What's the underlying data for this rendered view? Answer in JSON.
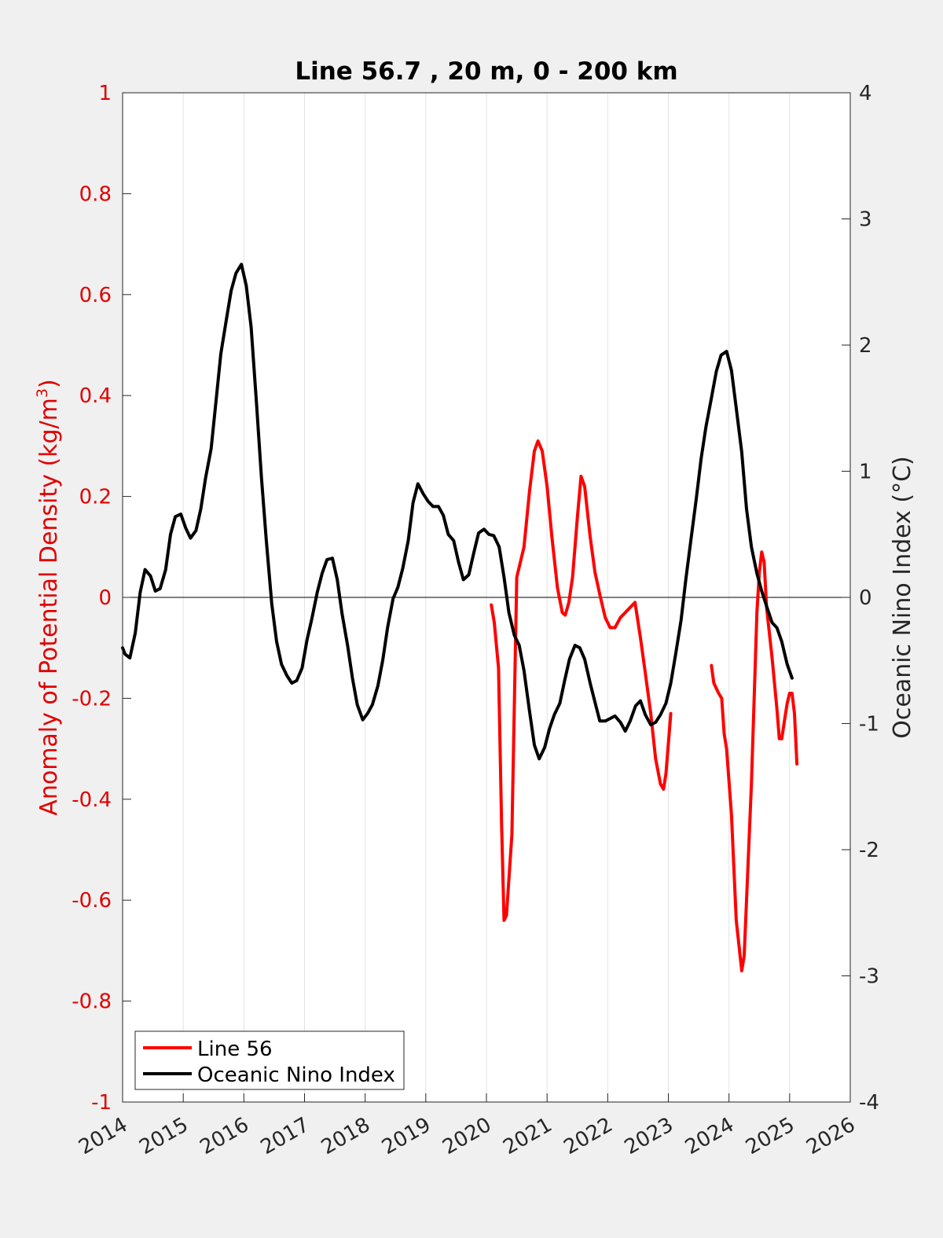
{
  "chart_data": {
    "type": "line",
    "title": "Line 56.7 , 20 m, 0 - 200 km",
    "xlabel": "",
    "ylabel_left": "Anomaly of Potential Density (kg/m",
    "ylabel_left_superscript": "3",
    "ylabel_left_close": ")",
    "ylabel_right": "Oceanic Nino Index (°C)",
    "xlim": [
      2014,
      2026
    ],
    "ylim_left": [
      -1,
      1
    ],
    "ylim_right": [
      -4,
      4
    ],
    "x_ticks": [
      2014,
      2015,
      2016,
      2017,
      2018,
      2019,
      2020,
      2021,
      2022,
      2023,
      2024,
      2025,
      2026
    ],
    "x_tick_labels": [
      "2014",
      "2015",
      "2016",
      "2017",
      "2018",
      "2019",
      "2020",
      "2021",
      "2022",
      "2023",
      "2024",
      "2025",
      "2026"
    ],
    "y_left_ticks": [
      1,
      0.8,
      0.6,
      0.4,
      0.2,
      0,
      -0.2,
      -0.4,
      -0.6,
      -0.8,
      -1
    ],
    "y_left_tick_labels": [
      "1",
      "0.8",
      "0.6",
      "0.4",
      "0.2",
      "0",
      "-0.2",
      "-0.4",
      "-0.6",
      "-0.8",
      "-1"
    ],
    "y_right_ticks": [
      4,
      3,
      2,
      1,
      0,
      -1,
      -2,
      -3,
      -4
    ],
    "y_right_tick_labels": [
      "4",
      "3",
      "2",
      "1",
      "0",
      "-1",
      "-2",
      "-3",
      "-4"
    ],
    "grid": "vertical",
    "zero_line": true,
    "legend_position": "bottom-left",
    "colors": {
      "line56": "#ff0000",
      "oni": "#000000",
      "left_axis": "#e00000"
    },
    "series": [
      {
        "name": "Line 56",
        "axis": "left",
        "segments": [
          [
            [
              2020.08,
              -0.015
            ],
            [
              2020.13,
              -0.05
            ],
            [
              2020.2,
              -0.14
            ],
            [
              2020.25,
              -0.45
            ],
            [
              2020.29,
              -0.64
            ],
            [
              2020.33,
              -0.63
            ],
            [
              2020.42,
              -0.47
            ],
            [
              2020.5,
              0.04
            ],
            [
              2020.54,
              0.06
            ],
            [
              2020.62,
              0.1
            ],
            [
              2020.71,
              0.21
            ],
            [
              2020.79,
              0.29
            ],
            [
              2020.85,
              0.31
            ],
            [
              2020.92,
              0.29
            ],
            [
              2021.0,
              0.22
            ],
            [
              2021.08,
              0.12
            ],
            [
              2021.17,
              0.02
            ],
            [
              2021.25,
              -0.03
            ],
            [
              2021.3,
              -0.035
            ],
            [
              2021.36,
              -0.01
            ],
            [
              2021.42,
              0.04
            ],
            [
              2021.5,
              0.16
            ],
            [
              2021.56,
              0.24
            ],
            [
              2021.62,
              0.22
            ],
            [
              2021.71,
              0.12
            ],
            [
              2021.79,
              0.05
            ],
            [
              2021.88,
              0.0
            ],
            [
              2021.96,
              -0.04
            ],
            [
              2022.04,
              -0.06
            ],
            [
              2022.12,
              -0.06
            ],
            [
              2022.21,
              -0.04
            ],
            [
              2022.29,
              -0.03
            ],
            [
              2022.37,
              -0.02
            ],
            [
              2022.45,
              -0.01
            ],
            [
              2022.54,
              -0.08
            ],
            [
              2022.62,
              -0.15
            ],
            [
              2022.71,
              -0.23
            ],
            [
              2022.79,
              -0.32
            ],
            [
              2022.87,
              -0.37
            ],
            [
              2022.92,
              -0.38
            ],
            [
              2022.96,
              -0.35
            ],
            [
              2023.04,
              -0.23
            ]
          ],
          [
            [
              2023.71,
              -0.135
            ],
            [
              2023.75,
              -0.17
            ],
            [
              2023.79,
              -0.18
            ],
            [
              2023.83,
              -0.19
            ],
            [
              2023.88,
              -0.2
            ],
            [
              2023.92,
              -0.27
            ],
            [
              2023.96,
              -0.3
            ],
            [
              2024.04,
              -0.43
            ],
            [
              2024.12,
              -0.64
            ],
            [
              2024.21,
              -0.74
            ],
            [
              2024.25,
              -0.71
            ],
            [
              2024.29,
              -0.6
            ],
            [
              2024.37,
              -0.37
            ],
            [
              2024.42,
              -0.18
            ],
            [
              2024.46,
              -0.03
            ],
            [
              2024.5,
              0.05
            ],
            [
              2024.54,
              0.09
            ],
            [
              2024.58,
              0.07
            ],
            [
              2024.62,
              -0.02
            ],
            [
              2024.71,
              -0.12
            ],
            [
              2024.79,
              -0.22
            ],
            [
              2024.83,
              -0.28
            ],
            [
              2024.87,
              -0.28
            ],
            [
              2024.92,
              -0.24
            ],
            [
              2024.96,
              -0.21
            ],
            [
              2025.0,
              -0.19
            ],
            [
              2025.04,
              -0.19
            ],
            [
              2025.08,
              -0.23
            ],
            [
              2025.12,
              -0.33
            ]
          ]
        ]
      },
      {
        "name": "Oceanic Nino Index",
        "axis": "right",
        "points": [
          [
            2014.0,
            -0.4
          ],
          [
            2014.04,
            -0.45
          ],
          [
            2014.12,
            -0.48
          ],
          [
            2014.21,
            -0.28
          ],
          [
            2014.29,
            0.04
          ],
          [
            2014.37,
            0.22
          ],
          [
            2014.46,
            0.17
          ],
          [
            2014.54,
            0.05
          ],
          [
            2014.62,
            0.07
          ],
          [
            2014.71,
            0.22
          ],
          [
            2014.79,
            0.5
          ],
          [
            2014.87,
            0.64
          ],
          [
            2014.96,
            0.66
          ],
          [
            2015.04,
            0.55
          ],
          [
            2015.12,
            0.47
          ],
          [
            2015.21,
            0.53
          ],
          [
            2015.29,
            0.7
          ],
          [
            2015.37,
            0.95
          ],
          [
            2015.46,
            1.18
          ],
          [
            2015.54,
            1.55
          ],
          [
            2015.62,
            1.93
          ],
          [
            2015.71,
            2.2
          ],
          [
            2015.79,
            2.43
          ],
          [
            2015.87,
            2.57
          ],
          [
            2015.96,
            2.64
          ],
          [
            2016.04,
            2.47
          ],
          [
            2016.12,
            2.14
          ],
          [
            2016.21,
            1.53
          ],
          [
            2016.29,
            0.95
          ],
          [
            2016.37,
            0.45
          ],
          [
            2016.46,
            -0.05
          ],
          [
            2016.54,
            -0.35
          ],
          [
            2016.62,
            -0.53
          ],
          [
            2016.71,
            -0.62
          ],
          [
            2016.79,
            -0.68
          ],
          [
            2016.87,
            -0.66
          ],
          [
            2016.96,
            -0.56
          ],
          [
            2017.04,
            -0.34
          ],
          [
            2017.12,
            -0.17
          ],
          [
            2017.21,
            0.04
          ],
          [
            2017.29,
            0.19
          ],
          [
            2017.37,
            0.3
          ],
          [
            2017.46,
            0.31
          ],
          [
            2017.54,
            0.14
          ],
          [
            2017.62,
            -0.13
          ],
          [
            2017.71,
            -0.38
          ],
          [
            2017.79,
            -0.64
          ],
          [
            2017.87,
            -0.85
          ],
          [
            2017.96,
            -0.97
          ],
          [
            2018.04,
            -0.92
          ],
          [
            2018.12,
            -0.85
          ],
          [
            2018.21,
            -0.7
          ],
          [
            2018.29,
            -0.5
          ],
          [
            2018.37,
            -0.24
          ],
          [
            2018.46,
            -0.01
          ],
          [
            2018.54,
            0.08
          ],
          [
            2018.62,
            0.23
          ],
          [
            2018.71,
            0.45
          ],
          [
            2018.79,
            0.75
          ],
          [
            2018.87,
            0.9
          ],
          [
            2018.96,
            0.82
          ],
          [
            2019.04,
            0.76
          ],
          [
            2019.12,
            0.72
          ],
          [
            2019.21,
            0.72
          ],
          [
            2019.29,
            0.65
          ],
          [
            2019.37,
            0.5
          ],
          [
            2019.46,
            0.45
          ],
          [
            2019.54,
            0.28
          ],
          [
            2019.62,
            0.14
          ],
          [
            2019.71,
            0.18
          ],
          [
            2019.79,
            0.35
          ],
          [
            2019.87,
            0.51
          ],
          [
            2019.96,
            0.54
          ],
          [
            2020.04,
            0.5
          ],
          [
            2020.12,
            0.49
          ],
          [
            2020.21,
            0.4
          ],
          [
            2020.29,
            0.16
          ],
          [
            2020.37,
            -0.12
          ],
          [
            2020.46,
            -0.3
          ],
          [
            2020.54,
            -0.38
          ],
          [
            2020.62,
            -0.58
          ],
          [
            2020.71,
            -0.9
          ],
          [
            2020.79,
            -1.17
          ],
          [
            2020.87,
            -1.28
          ],
          [
            2020.96,
            -1.19
          ],
          [
            2021.04,
            -1.04
          ],
          [
            2021.12,
            -0.93
          ],
          [
            2021.21,
            -0.84
          ],
          [
            2021.29,
            -0.66
          ],
          [
            2021.37,
            -0.49
          ],
          [
            2021.46,
            -0.38
          ],
          [
            2021.54,
            -0.4
          ],
          [
            2021.62,
            -0.49
          ],
          [
            2021.71,
            -0.68
          ],
          [
            2021.79,
            -0.83
          ],
          [
            2021.87,
            -0.98
          ],
          [
            2021.96,
            -0.98
          ],
          [
            2022.04,
            -0.96
          ],
          [
            2022.12,
            -0.94
          ],
          [
            2022.21,
            -0.99
          ],
          [
            2022.29,
            -1.06
          ],
          [
            2022.37,
            -0.98
          ],
          [
            2022.46,
            -0.86
          ],
          [
            2022.54,
            -0.82
          ],
          [
            2022.62,
            -0.93
          ],
          [
            2022.71,
            -1.01
          ],
          [
            2022.79,
            -0.99
          ],
          [
            2022.87,
            -0.93
          ],
          [
            2022.96,
            -0.84
          ],
          [
            2023.04,
            -0.68
          ],
          [
            2023.12,
            -0.45
          ],
          [
            2023.21,
            -0.18
          ],
          [
            2023.29,
            0.15
          ],
          [
            2023.37,
            0.45
          ],
          [
            2023.46,
            0.78
          ],
          [
            2023.54,
            1.1
          ],
          [
            2023.62,
            1.35
          ],
          [
            2023.71,
            1.58
          ],
          [
            2023.79,
            1.79
          ],
          [
            2023.87,
            1.92
          ],
          [
            2023.96,
            1.95
          ],
          [
            2024.04,
            1.8
          ],
          [
            2024.12,
            1.5
          ],
          [
            2024.21,
            1.15
          ],
          [
            2024.29,
            0.7
          ],
          [
            2024.37,
            0.4
          ],
          [
            2024.46,
            0.19
          ],
          [
            2024.54,
            0.05
          ],
          [
            2024.62,
            -0.07
          ],
          [
            2024.71,
            -0.2
          ],
          [
            2024.79,
            -0.24
          ],
          [
            2024.87,
            -0.35
          ],
          [
            2024.96,
            -0.53
          ],
          [
            2025.04,
            -0.64
          ]
        ]
      }
    ]
  }
}
